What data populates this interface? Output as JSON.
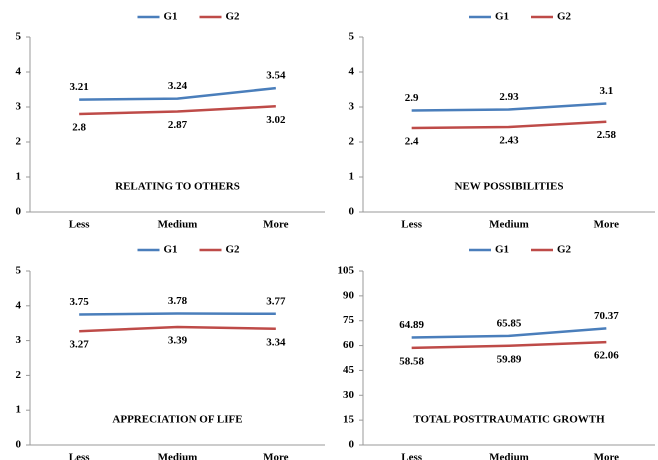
{
  "chart_data": [
    {
      "type": "line",
      "title": "RELATING TO OTHERS",
      "categories": [
        "Less",
        "Medium",
        "More"
      ],
      "series": [
        {
          "name": "G1",
          "color": "#4a7ebb",
          "values": [
            3.21,
            3.24,
            3.54
          ]
        },
        {
          "name": "G2",
          "color": "#be4b48",
          "values": [
            2.8,
            2.87,
            3.02
          ]
        }
      ],
      "ylim": [
        0,
        5
      ],
      "yticks": [
        0,
        1,
        2,
        3,
        4,
        5
      ],
      "legend": "top"
    },
    {
      "type": "line",
      "title": "NEW POSSIBILITIES",
      "categories": [
        "Less",
        "Medium",
        "More"
      ],
      "series": [
        {
          "name": "G1",
          "color": "#4a7ebb",
          "values": [
            2.9,
            2.93,
            3.1
          ]
        },
        {
          "name": "G2",
          "color": "#be4b48",
          "values": [
            2.4,
            2.43,
            2.58
          ]
        }
      ],
      "ylim": [
        0,
        5
      ],
      "yticks": [
        0,
        1,
        2,
        3,
        4,
        5
      ],
      "legend": "top"
    },
    {
      "type": "line",
      "title": "APPRECIATION  OF LIFE",
      "categories": [
        "Less",
        "Medium",
        "More"
      ],
      "series": [
        {
          "name": "G1",
          "color": "#4a7ebb",
          "values": [
            3.75,
            3.78,
            3.77
          ]
        },
        {
          "name": "G2",
          "color": "#be4b48",
          "values": [
            3.27,
            3.39,
            3.34
          ]
        }
      ],
      "ylim": [
        0,
        5
      ],
      "yticks": [
        0,
        1,
        2,
        3,
        4,
        5
      ],
      "legend": "top"
    },
    {
      "type": "line",
      "title": "TOTAL POSTTRAUMATIC  GROWTH",
      "categories": [
        "Less",
        "Medium",
        "More"
      ],
      "series": [
        {
          "name": "G1",
          "color": "#4a7ebb",
          "values": [
            64.89,
            65.85,
            70.37
          ]
        },
        {
          "name": "G2",
          "color": "#be4b48",
          "values": [
            58.58,
            59.89,
            62.06
          ]
        }
      ],
      "ylim": [
        0,
        105
      ],
      "yticks": [
        0,
        15,
        30,
        45,
        60,
        75,
        90,
        105
      ],
      "legend": "top"
    }
  ]
}
